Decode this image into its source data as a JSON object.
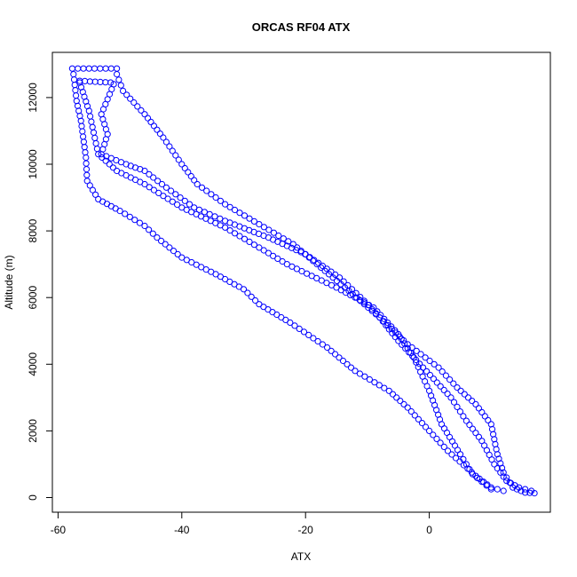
{
  "chart_data": {
    "type": "scatter",
    "title": "ORCAS RF04 ATX",
    "xlabel": "ATX",
    "ylabel": "Altitude (m)",
    "xlim": [
      -60,
      18
    ],
    "ylim": [
      -300,
      13400
    ],
    "xticks": [
      -60,
      -40,
      -20,
      0
    ],
    "yticks": [
      0,
      2000,
      4000,
      6000,
      8000,
      10000,
      12000
    ],
    "marker": "open-circle",
    "color": "#0000ff",
    "grid": false,
    "series": [
      {
        "path_a_vertices": [
          [
            -57.7,
            12870
          ],
          [
            -50.5,
            12870
          ]
        ],
        "path_b_vertices": [
          [
            -57.5,
            12700
          ],
          [
            -57.0,
            11900
          ],
          [
            -56.3,
            11300
          ],
          [
            -55.5,
            10200
          ],
          [
            -55.3,
            9500
          ],
          [
            -53.5,
            8950
          ],
          [
            -50.0,
            8600
          ],
          [
            -46.0,
            8150
          ],
          [
            -44.0,
            7800
          ],
          [
            -40.0,
            7200
          ],
          [
            -34.5,
            6700
          ],
          [
            -30.0,
            6250
          ],
          [
            -27.5,
            5800
          ],
          [
            -22.5,
            5250
          ],
          [
            -16.5,
            4500
          ],
          [
            -12.0,
            3800
          ],
          [
            -6.5,
            3200
          ],
          [
            -3.5,
            2700
          ],
          [
            0.0,
            2000
          ],
          [
            3.0,
            1400
          ],
          [
            7.5,
            650
          ],
          [
            10.0,
            300
          ],
          [
            12.0,
            200
          ]
        ]
      },
      {
        "path_a_vertices": [
          [
            -56.5,
            12500
          ],
          [
            -51.5,
            12450
          ]
        ],
        "path_b_vertices": [
          [
            -56.5,
            12450
          ],
          [
            -55.0,
            11600
          ],
          [
            -53.5,
            10300
          ],
          [
            -50.5,
            9800
          ],
          [
            -46.0,
            9400
          ],
          [
            -40.0,
            8700
          ],
          [
            -33.0,
            8100
          ],
          [
            -27.5,
            7500
          ],
          [
            -23.0,
            7000
          ],
          [
            -15.0,
            6300
          ],
          [
            -9.0,
            5700
          ],
          [
            -5.0,
            4900
          ],
          [
            -2.5,
            4200
          ],
          [
            0.0,
            3200
          ],
          [
            2.0,
            2200
          ],
          [
            5.0,
            1300
          ],
          [
            7.0,
            700
          ],
          [
            10.0,
            250
          ]
        ]
      },
      {
        "path_a_vertices": [
          [
            -50.5,
            12700
          ],
          [
            -49.5,
            12200
          ],
          [
            -46.0,
            11500
          ],
          [
            -43.0,
            10800
          ],
          [
            -40.0,
            10000
          ],
          [
            -37.5,
            9400
          ],
          [
            -33.0,
            8800
          ],
          [
            -27.5,
            8200
          ],
          [
            -22.0,
            7600
          ],
          [
            -17.5,
            6900
          ],
          [
            -13.0,
            6200
          ],
          [
            -8.0,
            5400
          ],
          [
            -3.5,
            4600
          ],
          [
            1.5,
            3900
          ],
          [
            4.5,
            3300
          ],
          [
            7.5,
            2800
          ],
          [
            10.0,
            2200
          ],
          [
            11.0,
            1300
          ],
          [
            12.0,
            750
          ],
          [
            13.5,
            300
          ],
          [
            15.5,
            150
          ],
          [
            17.0,
            130
          ]
        ]
      },
      {
        "path_a_vertices": [
          [
            -51.0,
            12400
          ],
          [
            -53.0,
            11500
          ],
          [
            -52.0,
            10900
          ],
          [
            -53.0,
            10300
          ],
          [
            -49.0,
            10000
          ],
          [
            -46.0,
            9800
          ],
          [
            -42.5,
            9300
          ],
          [
            -38.0,
            8700
          ],
          [
            -33.0,
            8300
          ],
          [
            -26.0,
            7800
          ],
          [
            -20.0,
            7300
          ],
          [
            -14.5,
            6600
          ],
          [
            -10.5,
            5900
          ],
          [
            -8.0,
            5400
          ],
          [
            -5.0,
            4700
          ],
          [
            -1.0,
            3900
          ],
          [
            3.5,
            3000
          ],
          [
            6.0,
            2300
          ],
          [
            8.5,
            1700
          ],
          [
            10.5,
            1000
          ],
          [
            12.5,
            500
          ],
          [
            14.5,
            300
          ],
          [
            16.5,
            200
          ]
        ]
      }
    ]
  }
}
